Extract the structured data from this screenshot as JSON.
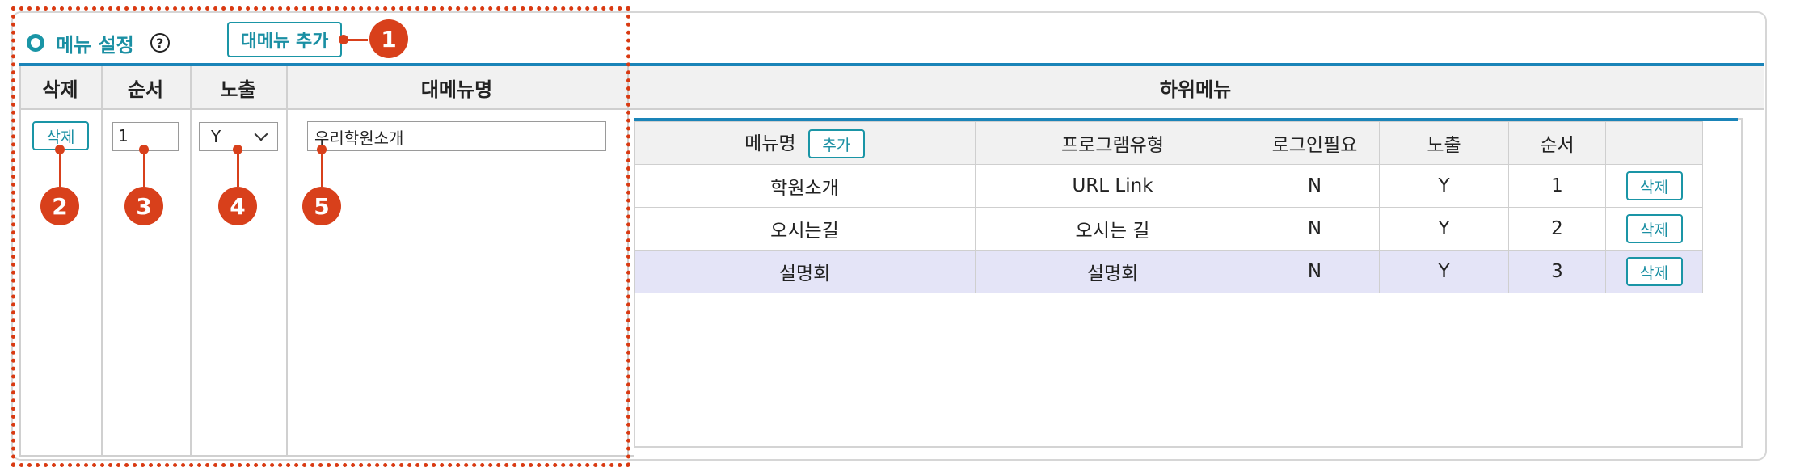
{
  "section": {
    "title": "메뉴 설정",
    "help_glyph": "?",
    "add_main_label": "대메뉴 추가"
  },
  "main_table": {
    "headers": [
      "삭제",
      "순서",
      "노출",
      "대메뉴명",
      "하위메뉴"
    ],
    "row": {
      "delete_label": "삭제",
      "order": "1",
      "visible": "Y",
      "name": "우리학원소개"
    }
  },
  "sub_table": {
    "headers": [
      "메뉴명",
      "프로그램유형",
      "로그인필요",
      "노출",
      "순서",
      ""
    ],
    "add_label": "추가",
    "rows": [
      {
        "name": "학원소개",
        "type": "URL Link",
        "login": "N",
        "visible": "Y",
        "order": "1",
        "delete_label": "삭제"
      },
      {
        "name": "오시는길",
        "type": "오시는 길",
        "login": "N",
        "visible": "Y",
        "order": "2",
        "delete_label": "삭제"
      },
      {
        "name": "설명회",
        "type": "설명회",
        "login": "N",
        "visible": "Y",
        "order": "3",
        "delete_label": "삭제"
      }
    ]
  },
  "markers": [
    "1",
    "2",
    "3",
    "4",
    "5"
  ],
  "colors": {
    "accent": "#1a95a6",
    "header_line": "#1a84b8",
    "annotation": "#d8401b",
    "highlight_row": "#e4e4f7"
  }
}
